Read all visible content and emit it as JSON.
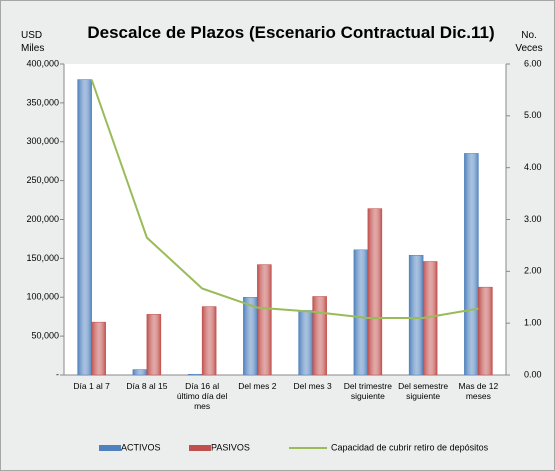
{
  "chart_data": {
    "type": "bar",
    "title": "Descalce de Plazos (Escenario Contractual Dic.11)",
    "y_label": "USD Miles",
    "y2_label": "No. Veces",
    "categories": [
      "Día 1 al 7",
      "Día 8 al 15",
      "Día 16 al último día del mes",
      "Del mes 2",
      "Del mes 3",
      "Del trimestre siguiente",
      "Del semestre siguiente",
      "Mas de 12 meses"
    ],
    "series": [
      {
        "name": "ACTIVOS",
        "color": "#4f81bd",
        "values": [
          380000,
          7000,
          1000,
          100000,
          83000,
          161000,
          154000,
          285000
        ]
      },
      {
        "name": "PASIVOS",
        "color": "#c0504d",
        "values": [
          68000,
          78000,
          88000,
          142000,
          101000,
          214000,
          146000,
          113000
        ]
      },
      {
        "name": "Capacidad de cubrir retiro de depósitos",
        "color": "#9bbb59",
        "type": "line",
        "axis": "y2",
        "values": [
          5.7,
          2.65,
          1.67,
          1.3,
          1.22,
          1.1,
          1.1,
          1.28
        ]
      }
    ],
    "ylim": [
      0,
      400000
    ],
    "yticks": [
      {
        "value": 0,
        "label": "-"
      },
      {
        "value": 50000,
        "label": "50,000"
      },
      {
        "value": 100000,
        "label": "100,000"
      },
      {
        "value": 150000,
        "label": "150,000"
      },
      {
        "value": 200000,
        "label": "200,000"
      },
      {
        "value": 250000,
        "label": "250,000"
      },
      {
        "value": 300000,
        "label": "300,000"
      },
      {
        "value": 350000,
        "label": "350,000"
      },
      {
        "value": 400000,
        "label": "400,000"
      }
    ],
    "y2lim": [
      0,
      6
    ],
    "y2ticks": [
      {
        "value": 0,
        "label": "0.00"
      },
      {
        "value": 1,
        "label": "1.00"
      },
      {
        "value": 2,
        "label": "2.00"
      },
      {
        "value": 3,
        "label": "3.00"
      },
      {
        "value": 4,
        "label": "4.00"
      },
      {
        "value": 5,
        "label": "5.00"
      },
      {
        "value": 6,
        "label": "6.00"
      }
    ],
    "legend": "bottom"
  }
}
